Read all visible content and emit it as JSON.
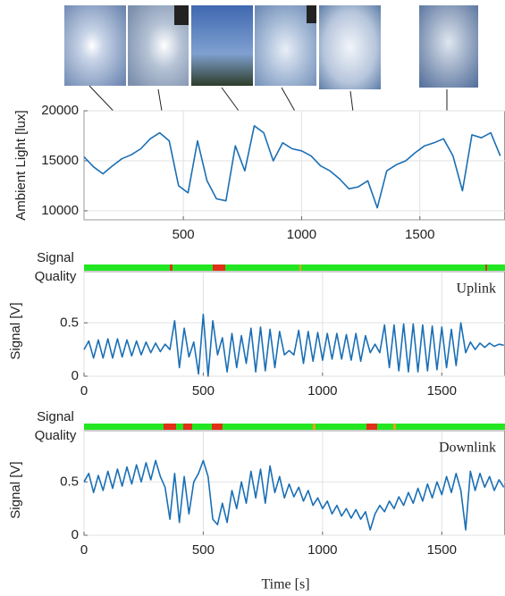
{
  "chart_data": [
    {
      "type": "line",
      "ylabel": "Ambient Light [lux]",
      "color": "#1a6fb5",
      "grid": true,
      "xlim": [
        80,
        1860
      ],
      "xticks": [
        500,
        1000,
        1500
      ],
      "ylim": [
        9100,
        20000
      ],
      "yticks": [
        10000,
        15000,
        20000
      ],
      "x": [
        80,
        120,
        160,
        200,
        240,
        280,
        320,
        360,
        400,
        440,
        480,
        520,
        560,
        600,
        640,
        680,
        720,
        760,
        800,
        840,
        880,
        920,
        960,
        1000,
        1040,
        1080,
        1120,
        1160,
        1200,
        1240,
        1280,
        1320,
        1360,
        1400,
        1440,
        1480,
        1520,
        1560,
        1600,
        1640,
        1680,
        1720,
        1760,
        1800,
        1840
      ],
      "values": [
        15400,
        14400,
        13700,
        14500,
        15200,
        15600,
        16200,
        17200,
        17800,
        17000,
        12500,
        11800,
        17000,
        13000,
        11200,
        11000,
        16500,
        14000,
        18500,
        17800,
        15000,
        16800,
        16200,
        16000,
        15500,
        14500,
        14000,
        13200,
        12200,
        12400,
        13000,
        10300,
        14000,
        14600,
        15000,
        15800,
        16500,
        16800,
        17200,
        15500,
        12000,
        17600,
        17300,
        17800,
        15500
      ]
    },
    {
      "type": "line",
      "ylabel": "Signal [V]",
      "quality_label": [
        "Signal",
        "Quality"
      ],
      "annotation": "Uplink",
      "color": "#1a6fb5",
      "grid": true,
      "xlim": [
        0,
        1765
      ],
      "xticks": [
        0,
        500,
        1000,
        1500
      ],
      "ylim": [
        0,
        0.98
      ],
      "yticks": [
        0,
        0.5
      ],
      "x": [
        0,
        20,
        40,
        60,
        80,
        100,
        120,
        140,
        160,
        180,
        200,
        220,
        240,
        260,
        280,
        300,
        320,
        340,
        360,
        380,
        400,
        420,
        440,
        460,
        480,
        500,
        520,
        540,
        560,
        580,
        600,
        620,
        640,
        660,
        680,
        700,
        720,
        740,
        760,
        780,
        800,
        820,
        840,
        860,
        880,
        900,
        920,
        940,
        960,
        980,
        1000,
        1020,
        1040,
        1060,
        1080,
        1100,
        1120,
        1140,
        1160,
        1180,
        1200,
        1220,
        1240,
        1260,
        1280,
        1300,
        1320,
        1340,
        1360,
        1380,
        1400,
        1420,
        1440,
        1460,
        1480,
        1500,
        1520,
        1540,
        1560,
        1580,
        1600,
        1620,
        1640,
        1660,
        1680,
        1700,
        1720,
        1740,
        1760
      ],
      "values": [
        0.25,
        0.33,
        0.17,
        0.34,
        0.17,
        0.35,
        0.17,
        0.35,
        0.18,
        0.34,
        0.19,
        0.33,
        0.2,
        0.32,
        0.22,
        0.31,
        0.23,
        0.3,
        0.25,
        0.52,
        0.08,
        0.45,
        0.18,
        0.32,
        0.02,
        0.58,
        0.0,
        0.52,
        0.2,
        0.36,
        0.04,
        0.4,
        0.08,
        0.38,
        0.12,
        0.45,
        0.04,
        0.46,
        0.05,
        0.44,
        0.08,
        0.42,
        0.2,
        0.24,
        0.2,
        0.43,
        0.12,
        0.42,
        0.14,
        0.41,
        0.15,
        0.4,
        0.16,
        0.4,
        0.16,
        0.39,
        0.15,
        0.4,
        0.14,
        0.38,
        0.22,
        0.3,
        0.22,
        0.48,
        0.08,
        0.48,
        0.05,
        0.49,
        0.04,
        0.49,
        0.04,
        0.48,
        0.05,
        0.47,
        0.06,
        0.46,
        0.08,
        0.44,
        0.1,
        0.5,
        0.22,
        0.32,
        0.25,
        0.31,
        0.27,
        0.31,
        0.28,
        0.3,
        0.29
      ]
    },
    {
      "type": "line",
      "ylabel": "Signal [V]",
      "quality_label": [
        "Signal",
        "Quality"
      ],
      "annotation": "Downlink",
      "xlabel": "Time [s]",
      "color": "#1a6fb5",
      "grid": true,
      "xlim": [
        0,
        1765
      ],
      "xticks": [
        0,
        500,
        1000,
        1500
      ],
      "ylim": [
        0,
        0.98
      ],
      "yticks": [
        0,
        0.5
      ],
      "x": [
        0,
        20,
        40,
        60,
        80,
        100,
        120,
        140,
        160,
        180,
        200,
        220,
        240,
        260,
        280,
        300,
        320,
        340,
        360,
        380,
        400,
        420,
        440,
        460,
        480,
        500,
        520,
        540,
        560,
        580,
        600,
        620,
        640,
        660,
        680,
        700,
        720,
        740,
        760,
        780,
        800,
        820,
        840,
        860,
        880,
        900,
        920,
        940,
        960,
        980,
        1000,
        1020,
        1040,
        1060,
        1080,
        1100,
        1120,
        1140,
        1160,
        1180,
        1200,
        1220,
        1240,
        1260,
        1280,
        1300,
        1320,
        1340,
        1360,
        1380,
        1400,
        1420,
        1440,
        1460,
        1480,
        1500,
        1520,
        1540,
        1560,
        1580,
        1600,
        1620,
        1640,
        1660,
        1680,
        1700,
        1720,
        1740,
        1760
      ],
      "values": [
        0.5,
        0.58,
        0.4,
        0.56,
        0.42,
        0.6,
        0.44,
        0.62,
        0.46,
        0.64,
        0.48,
        0.66,
        0.5,
        0.68,
        0.52,
        0.7,
        0.55,
        0.45,
        0.15,
        0.58,
        0.12,
        0.55,
        0.2,
        0.5,
        0.58,
        0.7,
        0.55,
        0.15,
        0.1,
        0.3,
        0.12,
        0.42,
        0.25,
        0.5,
        0.3,
        0.6,
        0.35,
        0.62,
        0.3,
        0.65,
        0.4,
        0.55,
        0.35,
        0.48,
        0.36,
        0.45,
        0.32,
        0.42,
        0.28,
        0.35,
        0.25,
        0.32,
        0.2,
        0.28,
        0.18,
        0.25,
        0.16,
        0.24,
        0.15,
        0.22,
        0.05,
        0.2,
        0.28,
        0.22,
        0.32,
        0.25,
        0.36,
        0.28,
        0.4,
        0.3,
        0.44,
        0.32,
        0.48,
        0.35,
        0.5,
        0.38,
        0.55,
        0.4,
        0.58,
        0.42,
        0.05,
        0.6,
        0.42,
        0.58,
        0.45,
        0.55,
        0.42,
        0.52,
        0.45
      ]
    }
  ]
}
